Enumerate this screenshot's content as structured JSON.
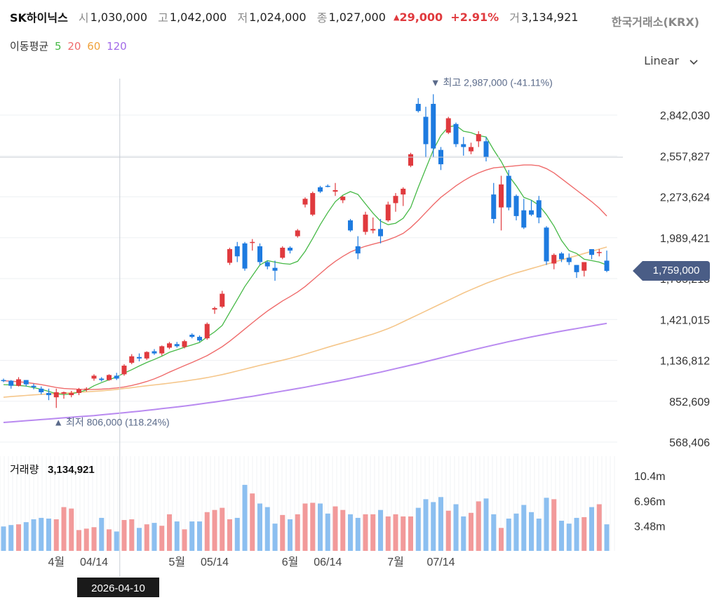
{
  "header": {
    "stock_name": "SK하이닉스",
    "open_label": "시",
    "open": "1,030,000",
    "high_label": "고",
    "high": "1,042,000",
    "low_label": "저",
    "low": "1,024,000",
    "close_label": "종",
    "close": "1,027,000",
    "change": "29,000",
    "change_pct": "+2.91%",
    "volume_label": "거",
    "volume": "3,134,921",
    "exchange": "한국거래소(KRX)"
  },
  "ma_legend": {
    "title": "이동평균",
    "items": [
      {
        "label": "5",
        "color": "#46b946"
      },
      {
        "label": "20",
        "color": "#ef6b6b"
      },
      {
        "label": "60",
        "color": "#f0a23c"
      },
      {
        "label": "120",
        "color": "#a26ae8"
      }
    ]
  },
  "scale": {
    "label": "Linear",
    "icon": "chevron-down-icon"
  },
  "annotations": {
    "high": "최고 2,987,000 (-41.11%)",
    "low": "최저 806,000 (118.24%)",
    "cursor_date": "2026-04-10",
    "current_price": "1,759,000"
  },
  "volume_panel": {
    "title": "거래량",
    "value": "3,134,921"
  },
  "colors": {
    "up": "#e03a3e",
    "down": "#1e7be0",
    "vol_up": "#f29a9a",
    "vol_down": "#8cbff0",
    "ma5": "#46b946",
    "ma20": "#ef6b6b",
    "ma60": "#f5c68a",
    "ma120": "#b98af0"
  },
  "chart_data": {
    "type": "candlestick",
    "y_ticks": [
      "2,842,030",
      "2,557,827",
      "2,273,624",
      "1,989,421",
      "1,705,218",
      "1,421,015",
      "1,136,812",
      "852,609",
      "568,406"
    ],
    "y_tick_values": [
      2842030,
      2557827,
      2273624,
      1989421,
      1705218,
      1421015,
      1136812,
      852609,
      568406
    ],
    "volume_ticks": [
      "10.4m",
      "6.96m",
      "3.48m"
    ],
    "volume_tick_values": [
      10.44,
      6.96,
      3.48
    ],
    "x_ticks": [
      "4월",
      "04/14",
      "5월",
      "05/14",
      "6월",
      "06/14",
      "7월",
      "07/14"
    ],
    "x_tick_index": [
      7,
      12,
      23,
      28,
      38,
      43,
      52,
      58
    ],
    "candles": [
      [
        1000000,
        1010000,
        985000,
        995000
      ],
      [
        995000,
        1000000,
        940000,
        960000
      ],
      [
        960000,
        1020000,
        955000,
        1005000
      ],
      [
        1000000,
        1000000,
        955000,
        970000
      ],
      [
        960000,
        975000,
        935000,
        950000
      ],
      [
        940000,
        955000,
        900000,
        915000
      ],
      [
        910000,
        940000,
        860000,
        895000
      ],
      [
        880000,
        940000,
        806000,
        915000
      ],
      [
        905000,
        920000,
        870000,
        915000
      ],
      [
        895000,
        925000,
        880000,
        910000
      ],
      [
        910000,
        945000,
        895000,
        935000
      ],
      [
        935000,
        950000,
        920000,
        940000
      ],
      [
        1010000,
        1040000,
        995000,
        1030000
      ],
      [
        1010000,
        1020000,
        990000,
        1000000
      ],
      [
        1000000,
        1040000,
        995000,
        1035000
      ],
      [
        1030000,
        1050000,
        1000000,
        1010000
      ],
      [
        1040000,
        1110000,
        1030000,
        1100000
      ],
      [
        1120000,
        1180000,
        1110000,
        1165000
      ],
      [
        1160000,
        1185000,
        1130000,
        1150000
      ],
      [
        1150000,
        1200000,
        1140000,
        1195000
      ],
      [
        1200000,
        1215000,
        1175000,
        1185000
      ],
      [
        1185000,
        1240000,
        1170000,
        1235000
      ],
      [
        1225000,
        1265000,
        1215000,
        1255000
      ],
      [
        1250000,
        1265000,
        1225000,
        1235000
      ],
      [
        1230000,
        1280000,
        1220000,
        1270000
      ],
      [
        1315000,
        1325000,
        1290000,
        1300000
      ],
      [
        1300000,
        1310000,
        1265000,
        1275000
      ],
      [
        1290000,
        1400000,
        1280000,
        1390000
      ],
      [
        1490000,
        1510000,
        1460000,
        1500000
      ],
      [
        1510000,
        1620000,
        1500000,
        1600000
      ],
      [
        1815000,
        1920000,
        1800000,
        1910000
      ],
      [
        1930000,
        1960000,
        1820000,
        1860000
      ],
      [
        1950000,
        1960000,
        1760000,
        1775000
      ],
      [
        1960000,
        1980000,
        1900000,
        1960000
      ],
      [
        1930000,
        1950000,
        1800000,
        1820000
      ],
      [
        1820000,
        1830000,
        1770000,
        1790000
      ],
      [
        1780000,
        1830000,
        1690000,
        1760000
      ],
      [
        1850000,
        1930000,
        1840000,
        1920000
      ],
      [
        1920000,
        1930000,
        1880000,
        1900000
      ],
      [
        2000000,
        2050000,
        1990000,
        2040000
      ],
      [
        2220000,
        2270000,
        2200000,
        2260000
      ],
      [
        2150000,
        2310000,
        2140000,
        2300000
      ],
      [
        2340000,
        2350000,
        2300000,
        2310000
      ],
      [
        2350000,
        2360000,
        2340000,
        2345000
      ],
      [
        2310000,
        2370000,
        2280000,
        2320000
      ],
      [
        2250000,
        2280000,
        2230000,
        2275000
      ],
      [
        2110000,
        2120000,
        2030000,
        2040000
      ],
      [
        1930000,
        2000000,
        1840000,
        1880000
      ],
      [
        2030000,
        2170000,
        2010000,
        2150000
      ],
      [
        2040000,
        2130000,
        2020000,
        2050000
      ],
      [
        2050000,
        2120000,
        1950000,
        2000000
      ],
      [
        2110000,
        2240000,
        2100000,
        2220000
      ],
      [
        2230000,
        2300000,
        2170000,
        2280000
      ],
      [
        2290000,
        2340000,
        2210000,
        2330000
      ],
      [
        2490000,
        2580000,
        2480000,
        2570000
      ],
      [
        2920000,
        2960000,
        2860000,
        2870000
      ],
      [
        2830000,
        2900000,
        2550000,
        2640000
      ],
      [
        2920000,
        2987000,
        2550000,
        2610000
      ],
      [
        2600000,
        2620000,
        2460000,
        2500000
      ],
      [
        2720000,
        2830000,
        2710000,
        2820000
      ],
      [
        2780000,
        2790000,
        2620000,
        2640000
      ],
      [
        2640000,
        2690000,
        2560000,
        2620000
      ],
      [
        2590000,
        2650000,
        2570000,
        2620000
      ],
      [
        2660000,
        2730000,
        2620000,
        2710000
      ],
      [
        2660000,
        2690000,
        2520000,
        2550000
      ],
      [
        2290000,
        2370000,
        2090000,
        2120000
      ],
      [
        2200000,
        2420000,
        2040000,
        2360000
      ],
      [
        2420000,
        2460000,
        2180000,
        2200000
      ],
      [
        2280000,
        2290000,
        2110000,
        2140000
      ],
      [
        2180000,
        2260000,
        2050000,
        2060000
      ],
      [
        2180000,
        2250000,
        2140000,
        2150000
      ],
      [
        2250000,
        2280000,
        2090000,
        2130000
      ],
      [
        2060000,
        2070000,
        1800000,
        1825000
      ],
      [
        1810000,
        1880000,
        1770000,
        1870000
      ],
      [
        1880000,
        1890000,
        1820000,
        1840000
      ],
      [
        1850000,
        1880000,
        1800000,
        1820000
      ],
      [
        1800000,
        1800000,
        1710000,
        1750000
      ],
      [
        1760000,
        1820000,
        1720000,
        1820000
      ],
      [
        1910000,
        1910000,
        1840000,
        1870000
      ],
      [
        1890000,
        1910000,
        1860000,
        1890000
      ],
      [
        1830000,
        1900000,
        1750000,
        1759000
      ]
    ],
    "volumes_m": [
      3.4,
      3.6,
      3.7,
      4.0,
      4.4,
      4.6,
      4.5,
      4.4,
      6.1,
      5.9,
      2.9,
      3.1,
      3.3,
      4.6,
      3.0,
      2.7,
      4.3,
      4.4,
      3.2,
      3.7,
      3.9,
      3.5,
      5.1,
      4.1,
      3.0,
      4.1,
      4.1,
      5.4,
      5.7,
      6.0,
      4.4,
      4.6,
      9.2,
      8.0,
      6.6,
      6.1,
      3.8,
      5.0,
      4.4,
      5.1,
      6.6,
      6.7,
      6.6,
      5.2,
      6.2,
      5.7,
      5.1,
      4.6,
      5.1,
      5.1,
      5.7,
      4.8,
      5.1,
      4.8,
      4.8,
      6.0,
      7.2,
      6.8,
      7.5,
      5.6,
      6.5,
      4.8,
      5.3,
      6.9,
      7.3,
      5.1,
      3.2,
      4.5,
      5.2,
      6.4,
      5.4,
      4.5,
      7.4,
      7.2,
      4.2,
      3.8,
      4.6,
      4.7,
      6.1,
      6.5,
      3.7
    ],
    "ma5": [
      968000,
      966000,
      962000,
      958000,
      947000,
      936000,
      921000,
      905000,
      898000,
      905000,
      915000,
      931000,
      960000,
      982000,
      1002000,
      1022000,
      1048000,
      1072000,
      1098000,
      1122000,
      1143000,
      1166000,
      1193000,
      1210000,
      1228000,
      1244000,
      1261000,
      1300000,
      1335000,
      1380000,
      1470000,
      1560000,
      1650000,
      1725000,
      1800000,
      1830000,
      1820000,
      1810000,
      1805000,
      1825000,
      1895000,
      1985000,
      2080000,
      2165000,
      2240000,
      2285000,
      2310000,
      2290000,
      2225000,
      2160000,
      2105000,
      2080000,
      2090000,
      2125000,
      2200000,
      2340000,
      2470000,
      2600000,
      2700000,
      2760000,
      2770000,
      2730000,
      2720000,
      2700000,
      2690000,
      2600000,
      2520000,
      2420000,
      2350000,
      2270000,
      2250000,
      2215000,
      2150000,
      2070000,
      1970000,
      1900000,
      1880000,
      1840000,
      1830000,
      1820000,
      1800000
    ],
    "ma20": [
      995000,
      992000,
      988000,
      983000,
      976000,
      968000,
      958000,
      948000,
      941000,
      938000,
      936000,
      934000,
      935000,
      937000,
      940000,
      945000,
      952000,
      962000,
      975000,
      990000,
      1008000,
      1030000,
      1055000,
      1078000,
      1100000,
      1122000,
      1145000,
      1170000,
      1200000,
      1232000,
      1270000,
      1312000,
      1355000,
      1398000,
      1440000,
      1480000,
      1515000,
      1550000,
      1580000,
      1612000,
      1650000,
      1695000,
      1740000,
      1785000,
      1825000,
      1860000,
      1890000,
      1912000,
      1930000,
      1945000,
      1958000,
      1975000,
      1995000,
      2020000,
      2060000,
      2110000,
      2165000,
      2220000,
      2270000,
      2310000,
      2350000,
      2385000,
      2415000,
      2440000,
      2460000,
      2475000,
      2480000,
      2485000,
      2490000,
      2495000,
      2495000,
      2490000,
      2470000,
      2440000,
      2400000,
      2360000,
      2320000,
      2280000,
      2240000,
      2195000,
      2140000
    ],
    "ma60": [
      880000,
      885000,
      889000,
      893000,
      897000,
      900000,
      903000,
      906000,
      909000,
      912000,
      915000,
      918000,
      921000,
      925000,
      930000,
      935000,
      941000,
      947000,
      954000,
      960000,
      966000,
      972000,
      978000,
      985000,
      992000,
      1000000,
      1008000,
      1017000,
      1027000,
      1038000,
      1050000,
      1063000,
      1076000,
      1089000,
      1102000,
      1114000,
      1126000,
      1138000,
      1151000,
      1165000,
      1180000,
      1196000,
      1212000,
      1228000,
      1243000,
      1258000,
      1273000,
      1288000,
      1304000,
      1320000,
      1338000,
      1358000,
      1380000,
      1405000,
      1430000,
      1455000,
      1480000,
      1505000,
      1530000,
      1555000,
      1580000,
      1605000,
      1628000,
      1650000,
      1672000,
      1692000,
      1710000,
      1728000,
      1745000,
      1760000,
      1775000,
      1790000,
      1805000,
      1820000,
      1835000,
      1850000,
      1865000,
      1880000,
      1895000,
      1910000,
      1925000
    ],
    "ma120": [
      705000,
      709000,
      713000,
      717000,
      721000,
      725000,
      729000,
      733000,
      737000,
      741000,
      745000,
      749000,
      753000,
      758000,
      763000,
      768000,
      773000,
      778000,
      783000,
      789000,
      795000,
      801000,
      807000,
      813000,
      819000,
      826000,
      833000,
      840000,
      847000,
      855000,
      863000,
      871000,
      879000,
      887000,
      896000,
      905000,
      914000,
      923000,
      932000,
      941000,
      950000,
      960000,
      970000,
      980000,
      990000,
      1000000,
      1011000,
      1022000,
      1033000,
      1044000,
      1055000,
      1067000,
      1079000,
      1091000,
      1103000,
      1115000,
      1128000,
      1141000,
      1154000,
      1167000,
      1180000,
      1193000,
      1206000,
      1219000,
      1231000,
      1243000,
      1255000,
      1267000,
      1278000,
      1289000,
      1300000,
      1310000,
      1320000,
      1330000,
      1340000,
      1349000,
      1358000,
      1367000,
      1376000,
      1385000,
      1394000
    ],
    "high_point": {
      "index": 57,
      "value": 2987000
    },
    "low_point": {
      "index": 7,
      "value": 806000
    },
    "cursor_index": 13
  }
}
